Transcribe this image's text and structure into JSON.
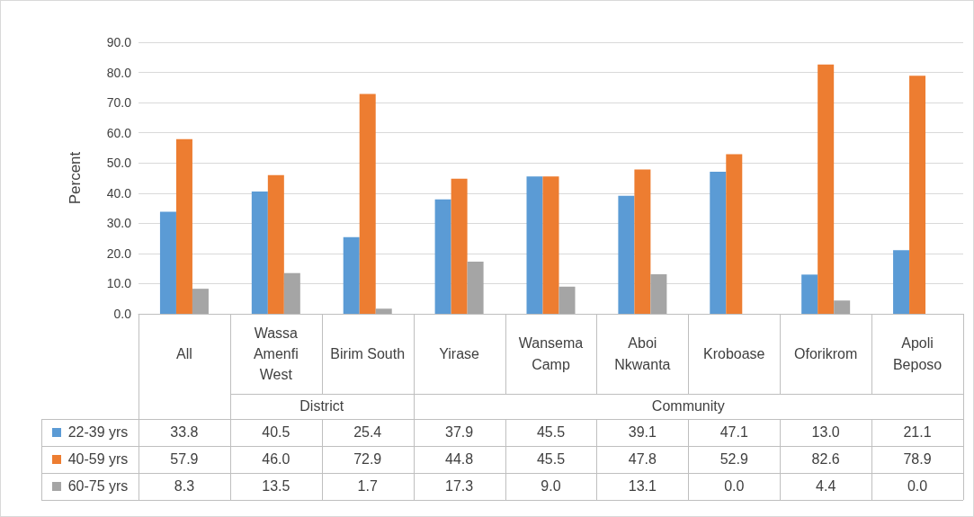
{
  "chart_data": {
    "type": "bar",
    "ylabel": "Percent",
    "categories": [
      "All",
      "Wassa Amenfi West",
      "Birim South",
      "Yirase",
      "Wansema Camp",
      "Aboi Nkwanta",
      "Kroboase",
      "Oforikrom",
      "Apoli Beposo"
    ],
    "annotations": [
      "District",
      "Community"
    ],
    "series": [
      {
        "name": "22-39 yrs",
        "color": "#5b9bd5",
        "values": [
          33.8,
          40.5,
          25.4,
          37.9,
          45.5,
          39.1,
          47.1,
          13.0,
          21.1
        ],
        "value_labels": [
          "33.8",
          "40.5",
          "25.4",
          "37.9",
          "45.5",
          "39.1",
          "47.1",
          "13.0",
          "21.1"
        ]
      },
      {
        "name": "40-59 yrs",
        "color": "#ed7d31",
        "values": [
          57.9,
          46.0,
          72.9,
          44.8,
          45.5,
          47.8,
          52.9,
          82.6,
          78.9
        ],
        "value_labels": [
          "57.9",
          "46.0",
          "72.9",
          "44.8",
          "45.5",
          "47.8",
          "52.9",
          "82.6",
          "78.9"
        ]
      },
      {
        "name": "60-75 yrs",
        "color": "#a5a5a5",
        "values": [
          8.3,
          13.5,
          1.7,
          17.3,
          9.0,
          13.1,
          0.0,
          4.4,
          0.0
        ],
        "value_labels": [
          "8.3",
          "13.5",
          "1.7",
          "17.3",
          "9.0",
          "13.1",
          "0.0",
          "4.4",
          "0.0"
        ]
      }
    ],
    "ylim": [
      0,
      90
    ],
    "yticks": [
      {
        "value": 0,
        "label": "0.0"
      },
      {
        "value": 10,
        "label": "10.0"
      },
      {
        "value": 20,
        "label": "20.0"
      },
      {
        "value": 30,
        "label": "30.0"
      },
      {
        "value": 40,
        "label": "40.0"
      },
      {
        "value": 50,
        "label": "50.0"
      },
      {
        "value": 60,
        "label": "60.0"
      },
      {
        "value": 70,
        "label": "70.0"
      },
      {
        "value": 80,
        "label": "80.0"
      },
      {
        "value": 90,
        "label": "90.0"
      }
    ],
    "grid": "y",
    "legend": "bottom"
  }
}
